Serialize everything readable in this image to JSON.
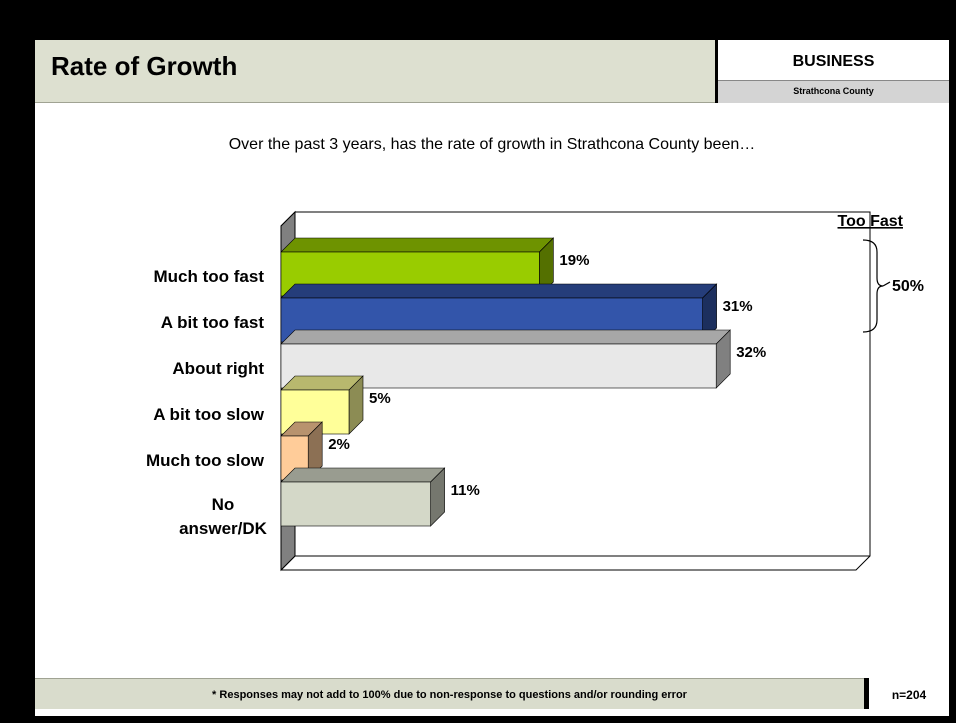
{
  "header": {
    "title": "Rate of Growth",
    "section": "BUSINESS",
    "section_sub": "Strathcona County"
  },
  "question": "Over the past 3 years, has the rate of growth in Strathcona County been…",
  "chart_data": {
    "type": "bar",
    "orientation": "horizontal",
    "categories": [
      "Much too fast",
      "A bit too fast",
      "About right",
      "A bit too slow",
      "Much too slow",
      "No answer/DK"
    ],
    "values": [
      19,
      31,
      32,
      5,
      2,
      11
    ],
    "value_labels": [
      "19%",
      "31%",
      "32%",
      "5%",
      "2%",
      "11%"
    ],
    "colors": [
      "#99cc00",
      "#3355aa",
      "#e8e8e8",
      "#ffff99",
      "#ffcc99",
      "#d4d8c8"
    ],
    "xlim": [
      0,
      40
    ],
    "grid": false,
    "legend": "none",
    "annotation": {
      "label": "Too Fast",
      "value": "50%",
      "spans": [
        "Much too fast",
        "A bit too fast"
      ]
    }
  },
  "footer": {
    "note": "* Responses may not add to 100% due to non-response to questions and/or rounding error",
    "sample_size": "n=204"
  }
}
